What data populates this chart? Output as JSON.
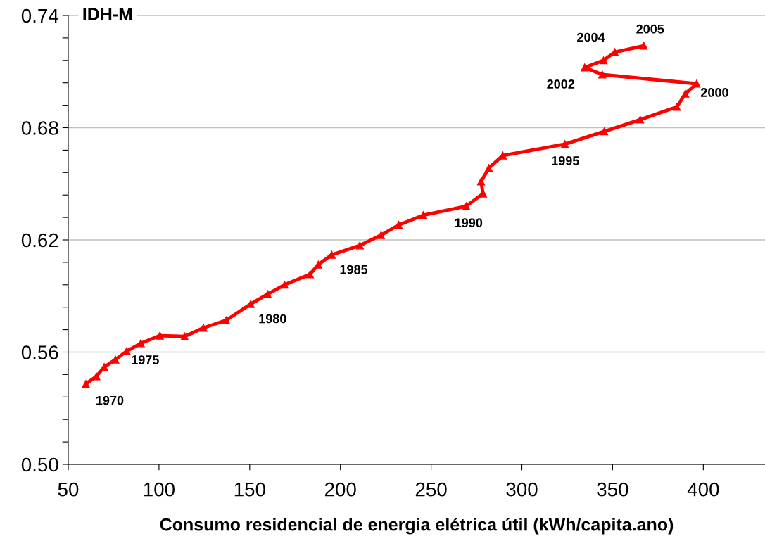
{
  "chart_data": {
    "type": "line",
    "ylabel": "IDH-M",
    "xlabel": "Consumo residencial de energia elétrica útil (kWh/capita.ano)",
    "x": [
      59.7,
      65.5,
      69.8,
      76.0,
      82.2,
      90.0,
      100.5,
      114.1,
      124.5,
      137.0,
      150.5,
      159.9,
      169.2,
      183.2,
      187.8,
      195.2,
      210.7,
      222.4,
      232.1,
      245.7,
      269.3,
      278.6,
      277.5,
      281.8,
      289.5,
      323.7,
      345.4,
      365.2,
      385.4,
      390.1,
      396.3,
      344.3,
      334.6,
      345.0,
      351.2,
      367.2
    ],
    "series": [
      {
        "color": "#ff0000",
        "values": [
          0.543,
          0.547,
          0.552,
          0.556,
          0.5605,
          0.5647,
          0.5688,
          0.5684,
          0.573,
          0.577,
          0.5857,
          0.591,
          0.596,
          0.6016,
          0.6068,
          0.612,
          0.617,
          0.6226,
          0.628,
          0.6332,
          0.638,
          0.6448,
          0.6512,
          0.6584,
          0.6651,
          0.6712,
          0.678,
          0.6843,
          0.6911,
          0.6982,
          0.7035,
          0.7084,
          0.7122,
          0.716,
          0.7204,
          0.7238
        ]
      }
    ],
    "marker": "triangle",
    "line_style": "solid",
    "grid": "y",
    "legend": false,
    "xlim": [
      50,
      434
    ],
    "xticks": [
      50,
      100,
      150,
      200,
      250,
      300,
      350,
      400
    ],
    "ylim": [
      0.5,
      0.74
    ],
    "yticks": [
      {
        "value": 0.5,
        "label": "0.50"
      },
      {
        "value": 0.512,
        "label": null
      },
      {
        "value": 0.524,
        "label": null
      },
      {
        "value": 0.536,
        "label": null
      },
      {
        "value": 0.548,
        "label": null
      },
      {
        "value": 0.56,
        "label": "0.56"
      },
      {
        "value": 0.572,
        "label": null
      },
      {
        "value": 0.584,
        "label": null
      },
      {
        "value": 0.596,
        "label": null
      },
      {
        "value": 0.608,
        "label": null
      },
      {
        "value": 0.62,
        "label": "0.62"
      },
      {
        "value": 0.632,
        "label": null
      },
      {
        "value": 0.644,
        "label": null
      },
      {
        "value": 0.656,
        "label": null
      },
      {
        "value": 0.668,
        "label": null
      },
      {
        "value": 0.68,
        "label": "0.68"
      },
      {
        "value": 0.692,
        "label": null
      },
      {
        "value": 0.704,
        "label": null
      },
      {
        "value": 0.716,
        "label": null
      },
      {
        "value": 0.728,
        "label": null
      },
      {
        "value": 0.74,
        "label": "0.74"
      }
    ],
    "annotations": [
      {
        "text": "1970",
        "x": 59.7,
        "y": 0.543
      },
      {
        "text": "1975",
        "x": 90.0,
        "y": 0.5647
      },
      {
        "text": "1980",
        "x": 150.5,
        "y": 0.5857
      },
      {
        "text": "1985",
        "x": 195.2,
        "y": 0.612
      },
      {
        "text": "1990",
        "x": 269.3,
        "y": 0.638
      },
      {
        "text": "1995",
        "x": 323.7,
        "y": 0.6712
      },
      {
        "text": "2000",
        "x": 396.3,
        "y": 0.7035
      },
      {
        "text": "2002",
        "x": 334.6,
        "y": 0.7122
      },
      {
        "text": "2004",
        "x": 351.2,
        "y": 0.7204
      },
      {
        "text": "2005",
        "x": 367.2,
        "y": 0.7238
      }
    ]
  }
}
